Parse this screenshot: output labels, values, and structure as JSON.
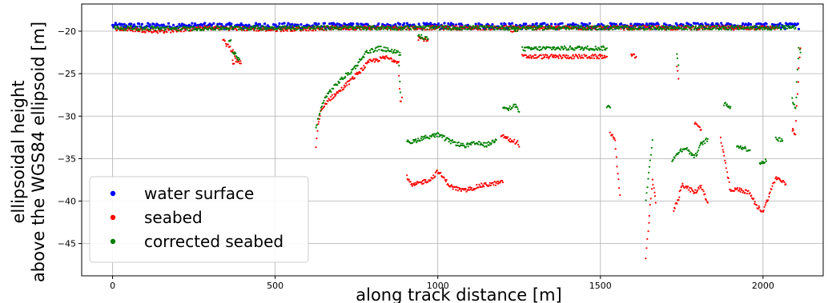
{
  "chart_data": {
    "type": "scatter",
    "title": "",
    "xlabel": "along track distance [m]",
    "ylabel_lines": [
      "ellipsoidal height",
      "above the WGS84 ellipsoid [m]"
    ],
    "xlim": [
      -95,
      2185
    ],
    "ylim": [
      -48.8,
      -16.8
    ],
    "x_ticks": [
      0,
      500,
      1000,
      1500,
      2000
    ],
    "y_ticks": [
      -20,
      -25,
      -30,
      -35,
      -40,
      -45
    ],
    "grid": true,
    "legend_position": "lower-left",
    "series": [
      {
        "name": "water surface",
        "color": "#0000ff",
        "pattern": "dense-band",
        "x_range": [
          0,
          2110
        ],
        "y_center": -19.4,
        "y_spread": 0.35
      },
      {
        "name": "seabed",
        "color": "#ff0000",
        "segments": [
          [
            [
              10,
              -19.7
            ],
            [
              150,
              -20.0
            ],
            [
              290,
              -19.6
            ],
            [
              500,
              -19.8
            ],
            [
              700,
              -19.6
            ],
            [
              950,
              -19.6
            ],
            [
              1150,
              -19.6
            ],
            [
              1400,
              -19.6
            ],
            [
              1650,
              -19.6
            ],
            [
              1850,
              -19.6
            ],
            [
              2050,
              -19.6
            ]
          ],
          [
            [
              340,
              -21.0
            ],
            [
              350,
              -21.6
            ],
            [
              370,
              -22.4
            ],
            [
              380,
              -23.4
            ],
            [
              395,
              -23.8
            ]
          ],
          [
            [
              625,
              -33.6
            ],
            [
              630,
              -31.5
            ],
            [
              640,
              -29.6
            ],
            [
              660,
              -28.2
            ],
            [
              700,
              -27.0
            ],
            [
              740,
              -25.5
            ],
            [
              790,
              -23.6
            ],
            [
              840,
              -23.1
            ],
            [
              880,
              -23.6
            ]
          ],
          [
            [
              880,
              -25.0
            ],
            [
              885,
              -28.3
            ],
            [
              890,
              -27.8
            ]
          ],
          [
            [
              940,
              -20.8
            ],
            [
              970,
              -21.0
            ]
          ],
          [
            [
              905,
              -37.2
            ],
            [
              920,
              -38.2
            ],
            [
              950,
              -37.8
            ],
            [
              980,
              -37.4
            ],
            [
              1000,
              -36.5
            ],
            [
              1040,
              -38.3
            ],
            [
              1080,
              -38.8
            ],
            [
              1130,
              -38.2
            ],
            [
              1180,
              -37.9
            ],
            [
              1200,
              -37.8
            ]
          ],
          [
            [
              1195,
              -32.2
            ],
            [
              1220,
              -32.8
            ],
            [
              1245,
              -33.1
            ],
            [
              1250,
              -33.6
            ]
          ],
          [
            [
              1225,
              -19.8
            ],
            [
              1240,
              -20.0
            ]
          ],
          [
            [
              1260,
              -23.0
            ],
            [
              1350,
              -23.0
            ],
            [
              1450,
              -23.0
            ],
            [
              1520,
              -23.0
            ]
          ],
          [
            [
              1530,
              -31.9
            ],
            [
              1545,
              -33.0
            ],
            [
              1560,
              -39.3
            ]
          ],
          [
            [
              1595,
              -22.9
            ],
            [
              1610,
              -23.0
            ]
          ],
          [
            [
              1640,
              -46.8
            ],
            [
              1660,
              -37.4
            ],
            [
              1670,
              -40.2
            ]
          ],
          [
            [
              1725,
              -41.1
            ],
            [
              1740,
              -39.7
            ],
            [
              1750,
              -38.0
            ],
            [
              1790,
              -39.0
            ],
            [
              1810,
              -38.2
            ],
            [
              1830,
              -40.2
            ]
          ],
          [
            [
              1735,
              -24.1
            ],
            [
              1740,
              -25.6
            ]
          ],
          [
            [
              1790,
              -30.8
            ],
            [
              1810,
              -31.6
            ]
          ],
          [
            [
              1870,
              -32.6
            ],
            [
              1900,
              -38.9
            ],
            [
              1920,
              -38.6
            ],
            [
              1940,
              -38.8
            ],
            [
              1960,
              -39.1
            ],
            [
              1980,
              -40.6
            ],
            [
              2000,
              -41.2
            ],
            [
              2040,
              -37.2
            ],
            [
              2070,
              -38.0
            ]
          ],
          [
            [
              2090,
              -31.6
            ],
            [
              2100,
              -32.1
            ],
            [
              2110,
              -24.2
            ],
            [
              2115,
              -22.0
            ]
          ],
          [
            [
              370,
              -23.6
            ]
          ]
        ]
      },
      {
        "name": "corrected seabed",
        "color": "#008000",
        "segments": [
          [
            [
              5,
              -19.6
            ],
            [
              200,
              -19.7
            ],
            [
              400,
              -19.6
            ],
            [
              600,
              -19.6
            ],
            [
              850,
              -19.6
            ],
            [
              1100,
              -19.6
            ],
            [
              1350,
              -19.6
            ],
            [
              1600,
              -19.6
            ],
            [
              1900,
              -19.6
            ],
            [
              2100,
              -19.6
            ]
          ],
          [
            [
              370,
              -22.3
            ],
            [
              380,
              -23.0
            ],
            [
              390,
              -23.3
            ]
          ],
          [
            [
              360,
              -21.2
            ]
          ],
          [
            [
              625,
              -31.3
            ],
            [
              635,
              -30.0
            ],
            [
              650,
              -28.0
            ],
            [
              670,
              -27.0
            ],
            [
              700,
              -25.8
            ],
            [
              740,
              -24.5
            ],
            [
              780,
              -22.5
            ],
            [
              820,
              -22.0
            ],
            [
              870,
              -22.4
            ],
            [
              885,
              -22.8
            ]
          ],
          [
            [
              880,
              -24.2
            ],
            [
              885,
              -27.2
            ]
          ],
          [
            [
              905,
              -32.8
            ],
            [
              920,
              -33.1
            ],
            [
              950,
              -32.6
            ],
            [
              1000,
              -32.2
            ],
            [
              1040,
              -33.0
            ],
            [
              1080,
              -33.5
            ],
            [
              1120,
              -33.2
            ],
            [
              1150,
              -33.4
            ],
            [
              1180,
              -32.8
            ]
          ],
          [
            [
              1200,
              -28.8
            ],
            [
              1220,
              -29.1
            ],
            [
              1240,
              -28.7
            ],
            [
              1250,
              -29.5
            ]
          ],
          [
            [
              1230,
              -19.7
            ],
            [
              1245,
              -20.0
            ]
          ],
          [
            [
              940,
              -20.5
            ],
            [
              970,
              -20.9
            ]
          ],
          [
            [
              1260,
              -22.1
            ],
            [
              1350,
              -22.0
            ],
            [
              1450,
              -22.0
            ],
            [
              1520,
              -22.0
            ]
          ],
          [
            [
              1520,
              -28.9
            ],
            [
              1530,
              -29.0
            ]
          ],
          [
            [
              1640,
              -39.7
            ],
            [
              1660,
              -32.8
            ]
          ],
          [
            [
              1720,
              -35.4
            ],
            [
              1740,
              -34.2
            ],
            [
              1760,
              -33.7
            ],
            [
              1790,
              -34.8
            ],
            [
              1810,
              -33.3
            ],
            [
              1830,
              -32.7
            ]
          ],
          [
            [
              1735,
              -22.7
            ],
            [
              1740,
              -24.0
            ]
          ],
          [
            [
              1880,
              -28.6
            ],
            [
              1900,
              -28.9
            ]
          ],
          [
            [
              1920,
              -33.5
            ],
            [
              1960,
              -34.0
            ]
          ],
          [
            [
              1990,
              -35.5
            ],
            [
              2010,
              -35.3
            ]
          ],
          [
            [
              2040,
              -32.6
            ],
            [
              2060,
              -32.9
            ]
          ],
          [
            [
              2090,
              -28.0
            ],
            [
              2100,
              -29.0
            ],
            [
              2110,
              -21.8
            ],
            [
              2115,
              -22.5
            ]
          ]
        ]
      }
    ]
  }
}
